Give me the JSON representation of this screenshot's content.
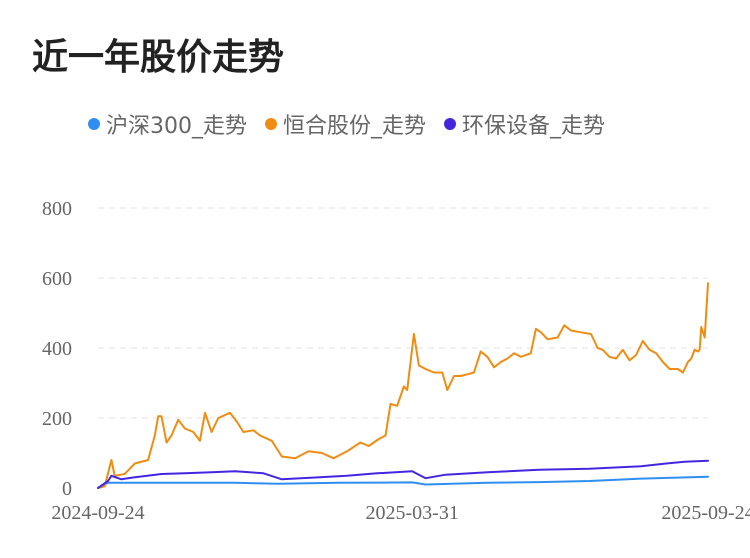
{
  "title": "近一年股价走势",
  "legend": [
    {
      "label": "沪深300_走势",
      "color": "#2f8ff0"
    },
    {
      "label": "恒合股份_走势",
      "color": "#ef8c12"
    },
    {
      "label": "环保设备_走势",
      "color": "#4426e0"
    }
  ],
  "chart_data": {
    "type": "line",
    "title": "近一年股价走势",
    "xlabel": "",
    "ylabel": "",
    "ylim": [
      0,
      800
    ],
    "yticks": [
      0,
      200,
      400,
      600,
      800
    ],
    "xticks": [
      "2024-09-24",
      "2025-03-31",
      "2025-09-24"
    ],
    "xrange": [
      "2024-09-24",
      "2025-09-24"
    ],
    "grid": "horizontal dashed",
    "legend_position": "top",
    "series": [
      {
        "name": "沪深300_走势",
        "color": "#2f8ff0",
        "points": [
          [
            "2024-09-24",
            0
          ],
          [
            "2024-09-30",
            15
          ],
          [
            "2024-10-15",
            15
          ],
          [
            "2024-11-15",
            15
          ],
          [
            "2024-12-15",
            15
          ],
          [
            "2025-01-10",
            12
          ],
          [
            "2025-02-15",
            15
          ],
          [
            "2025-03-31",
            16
          ],
          [
            "2025-04-08",
            10
          ],
          [
            "2025-05-15",
            15
          ],
          [
            "2025-06-15",
            17
          ],
          [
            "2025-07-15",
            20
          ],
          [
            "2025-08-15",
            27
          ],
          [
            "2025-09-24",
            32
          ]
        ]
      },
      {
        "name": "恒合股份_走势",
        "color": "#ef8c12",
        "points": [
          [
            "2024-09-24",
            0
          ],
          [
            "2024-09-28",
            5
          ],
          [
            "2024-10-02",
            80
          ],
          [
            "2024-10-04",
            35
          ],
          [
            "2024-10-10",
            40
          ],
          [
            "2024-10-16",
            70
          ],
          [
            "2024-10-24",
            80
          ],
          [
            "2024-10-28",
            150
          ],
          [
            "2024-10-30",
            205
          ],
          [
            "2024-11-01",
            205
          ],
          [
            "2024-11-04",
            130
          ],
          [
            "2024-11-07",
            150
          ],
          [
            "2024-11-11",
            195
          ],
          [
            "2024-11-15",
            170
          ],
          [
            "2024-11-20",
            160
          ],
          [
            "2024-11-24",
            135
          ],
          [
            "2024-11-27",
            215
          ],
          [
            "2024-12-01",
            160
          ],
          [
            "2024-12-05",
            200
          ],
          [
            "2024-12-12",
            215
          ],
          [
            "2024-12-16",
            190
          ],
          [
            "2024-12-20",
            160
          ],
          [
            "2024-12-26",
            165
          ],
          [
            "2024-12-30",
            150
          ],
          [
            "2025-01-06",
            135
          ],
          [
            "2025-01-12",
            90
          ],
          [
            "2025-01-20",
            85
          ],
          [
            "2025-01-28",
            105
          ],
          [
            "2025-02-05",
            100
          ],
          [
            "2025-02-12",
            85
          ],
          [
            "2025-02-20",
            105
          ],
          [
            "2025-02-28",
            130
          ],
          [
            "2025-03-05",
            120
          ],
          [
            "2025-03-11",
            140
          ],
          [
            "2025-03-15",
            150
          ],
          [
            "2025-03-18",
            240
          ],
          [
            "2025-03-22",
            235
          ],
          [
            "2025-03-26",
            290
          ],
          [
            "2025-03-28",
            280
          ],
          [
            "2025-04-01",
            440
          ],
          [
            "2025-04-04",
            350
          ],
          [
            "2025-04-08",
            340
          ],
          [
            "2025-04-13",
            330
          ],
          [
            "2025-04-18",
            330
          ],
          [
            "2025-04-21",
            280
          ],
          [
            "2025-04-25",
            320
          ],
          [
            "2025-04-29",
            320
          ],
          [
            "2025-05-03",
            325
          ],
          [
            "2025-05-07",
            330
          ],
          [
            "2025-05-11",
            390
          ],
          [
            "2025-05-15",
            375
          ],
          [
            "2025-05-19",
            345
          ],
          [
            "2025-05-23",
            360
          ],
          [
            "2025-05-27",
            370
          ],
          [
            "2025-05-31",
            385
          ],
          [
            "2025-06-04",
            375
          ],
          [
            "2025-06-10",
            385
          ],
          [
            "2025-06-13",
            455
          ],
          [
            "2025-06-16",
            445
          ],
          [
            "2025-06-20",
            425
          ],
          [
            "2025-06-26",
            430
          ],
          [
            "2025-06-30",
            465
          ],
          [
            "2025-07-04",
            450
          ],
          [
            "2025-07-10",
            445
          ],
          [
            "2025-07-16",
            440
          ],
          [
            "2025-07-20",
            400
          ],
          [
            "2025-07-23",
            395
          ],
          [
            "2025-07-27",
            375
          ],
          [
            "2025-07-31",
            370
          ],
          [
            "2025-08-04",
            395
          ],
          [
            "2025-08-08",
            365
          ],
          [
            "2025-08-12",
            380
          ],
          [
            "2025-08-16",
            420
          ],
          [
            "2025-08-20",
            395
          ],
          [
            "2025-08-24",
            385
          ],
          [
            "2025-08-28",
            360
          ],
          [
            "2025-09-01",
            340
          ],
          [
            "2025-09-06",
            340
          ],
          [
            "2025-09-09",
            330
          ],
          [
            "2025-09-12",
            360
          ],
          [
            "2025-09-14",
            370
          ],
          [
            "2025-09-16",
            395
          ],
          [
            "2025-09-18",
            390
          ],
          [
            "2025-09-19",
            395
          ],
          [
            "2025-09-20",
            460
          ],
          [
            "2025-09-22",
            430
          ],
          [
            "2025-09-24",
            585
          ]
        ]
      },
      {
        "name": "环保设备_走势",
        "color": "#4426e0",
        "points": [
          [
            "2024-09-24",
            0
          ],
          [
            "2024-09-30",
            20
          ],
          [
            "2024-10-02",
            35
          ],
          [
            "2024-10-08",
            25
          ],
          [
            "2024-10-15",
            30
          ],
          [
            "2024-11-01",
            40
          ],
          [
            "2024-11-15",
            42
          ],
          [
            "2024-12-01",
            45
          ],
          [
            "2024-12-15",
            48
          ],
          [
            "2025-01-01",
            42
          ],
          [
            "2025-01-12",
            25
          ],
          [
            "2025-02-01",
            30
          ],
          [
            "2025-02-20",
            35
          ],
          [
            "2025-03-10",
            42
          ],
          [
            "2025-03-31",
            48
          ],
          [
            "2025-04-08",
            28
          ],
          [
            "2025-04-20",
            38
          ],
          [
            "2025-05-15",
            45
          ],
          [
            "2025-06-15",
            52
          ],
          [
            "2025-07-15",
            55
          ],
          [
            "2025-08-15",
            62
          ],
          [
            "2025-08-30",
            70
          ],
          [
            "2025-09-10",
            75
          ],
          [
            "2025-09-24",
            78
          ]
        ]
      }
    ]
  }
}
